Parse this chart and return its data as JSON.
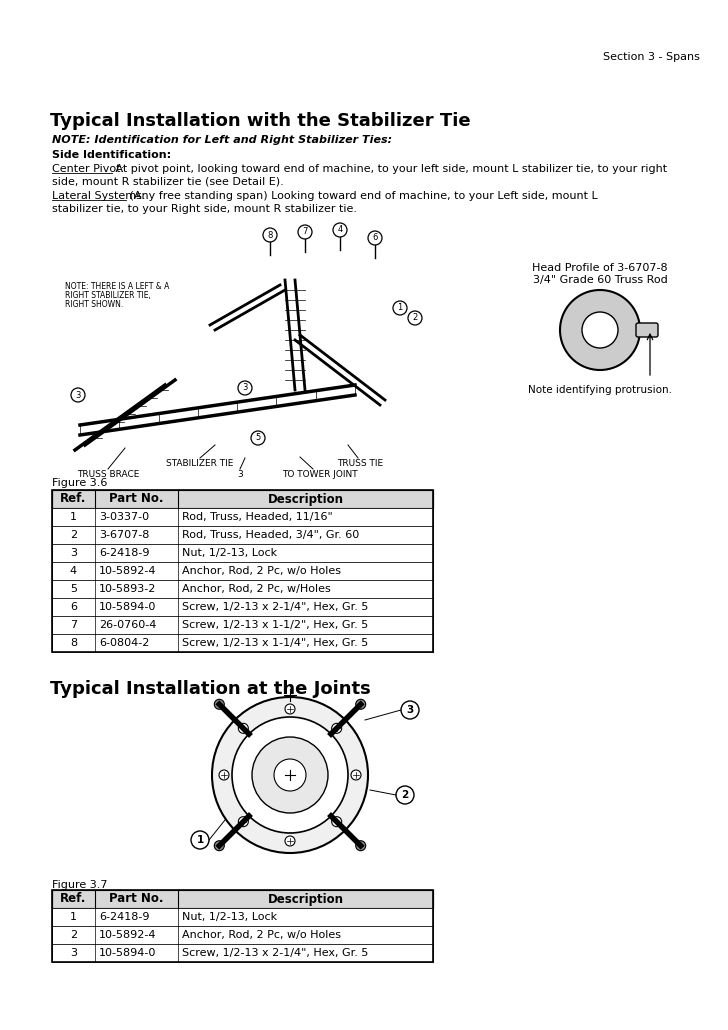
{
  "page_header": "Section 3 - Spans",
  "section1_title": "Typical Installation with the Stabilizer Tie",
  "section1_note_bold": "NOTE: Identification for Left and Right Stabilizer Ties",
  "section1_side_id": "Side Identification:",
  "section1_center_pivot_label": "Center Pivot:",
  "section1_center_pivot_line1": " At pivot point, looking toward end of machine, to your left side, mount L stabilizer tie, to your right",
  "section1_center_pivot_line2": "side, mount R stabilizer tie (see Detail E).",
  "section1_lateral_label": "Lateral Systems:",
  "section1_lateral_line1": " (Any free standing span) Looking toward end of machine, to your Left side, mount L",
  "section1_lateral_line2": "stabilizer tie, to your Right side, mount R stabilizer tie.",
  "figure1_label": "Figure 3.6",
  "table1_headers": [
    "Ref.",
    "Part No.",
    "Description"
  ],
  "table1_rows": [
    [
      "1",
      "3-0337-0",
      "Rod, Truss, Headed, 11/16\""
    ],
    [
      "2",
      "3-6707-8",
      "Rod, Truss, Headed, 3/4\", Gr. 60"
    ],
    [
      "3",
      "6-2418-9",
      "Nut, 1/2-13, Lock"
    ],
    [
      "4",
      "10-5892-4",
      "Anchor, Rod, 2 Pc, w/o Holes"
    ],
    [
      "5",
      "10-5893-2",
      "Anchor, Rod, 2 Pc, w/Holes"
    ],
    [
      "6",
      "10-5894-0",
      "Screw, 1/2-13 x 2-1/4\", Hex, Gr. 5"
    ],
    [
      "7",
      "26-0760-4",
      "Screw, 1/2-13 x 1-1/2\", Hex, Gr. 5"
    ],
    [
      "8",
      "6-0804-2",
      "Screw, 1/2-13 x 1-1/4\", Hex, Gr. 5"
    ]
  ],
  "section2_title": "Typical Installation at the Joints",
  "figure2_label": "Figure 3.7",
  "table2_headers": [
    "Ref.",
    "Part No.",
    "Description"
  ],
  "table2_rows": [
    [
      "1",
      "6-2418-9",
      "Nut, 1/2-13, Lock"
    ],
    [
      "2",
      "10-5892-4",
      "Anchor, Rod, 2 Pc, w/o Holes"
    ],
    [
      "3",
      "10-5894-0",
      "Screw, 1/2-13 x 2-1/4\", Hex, Gr. 5"
    ]
  ],
  "head_profile_line1": "Head Profile of 3-6707-8",
  "head_profile_line2": "3/4\" Grade 60 Truss Rod",
  "head_profile_note": "Note identifying protrusion.",
  "bg_color": "#ffffff",
  "text_color": "#000000"
}
